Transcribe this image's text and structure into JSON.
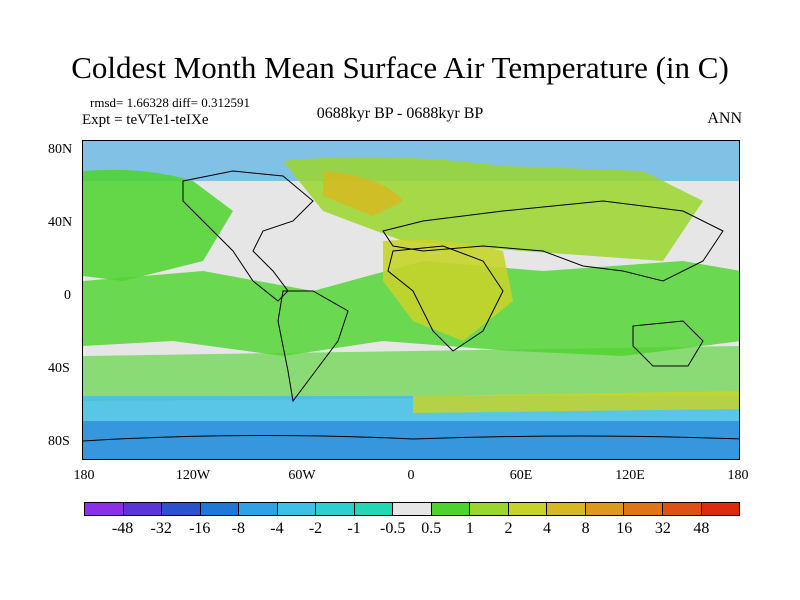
{
  "title": "Coldest Month Mean Surface Air Temperature (in C)",
  "stats": "rmsd= 1.66328 diff= 0.312591",
  "experiment": "Expt = teVTe1-teIXe",
  "period": "0688kyr BP - 0688kyr BP",
  "season": "ANN",
  "y_axis_labels": [
    "80N",
    "40N",
    "0",
    "40S",
    "80S"
  ],
  "x_axis_labels": [
    "180",
    "120W",
    "60W",
    "0",
    "60E",
    "120E",
    "180"
  ],
  "colorbar": {
    "labels": [
      "-48",
      "-32",
      "-16",
      "-8",
      "-4",
      "-2",
      "-1",
      "-0.5",
      "0.5",
      "1",
      "2",
      "4",
      "8",
      "16",
      "32",
      "48"
    ],
    "colors": [
      "#8b30e8",
      "#5c35d6",
      "#2a52cf",
      "#1f78d8",
      "#2fa2e6",
      "#3fc0e6",
      "#2dd0d0",
      "#22d8b4",
      "#e6e6e6",
      "#4cd42c",
      "#9ad62c",
      "#c6d42a",
      "#d6b820",
      "#dc9a1a",
      "#e07418",
      "#e05014",
      "#e02a10"
    ]
  },
  "colors": {
    "background": "#ffffff",
    "neutral_field": "#e6e6e6",
    "cool_field": "#2fa2e6",
    "warm_field": "#9ad62c"
  }
}
